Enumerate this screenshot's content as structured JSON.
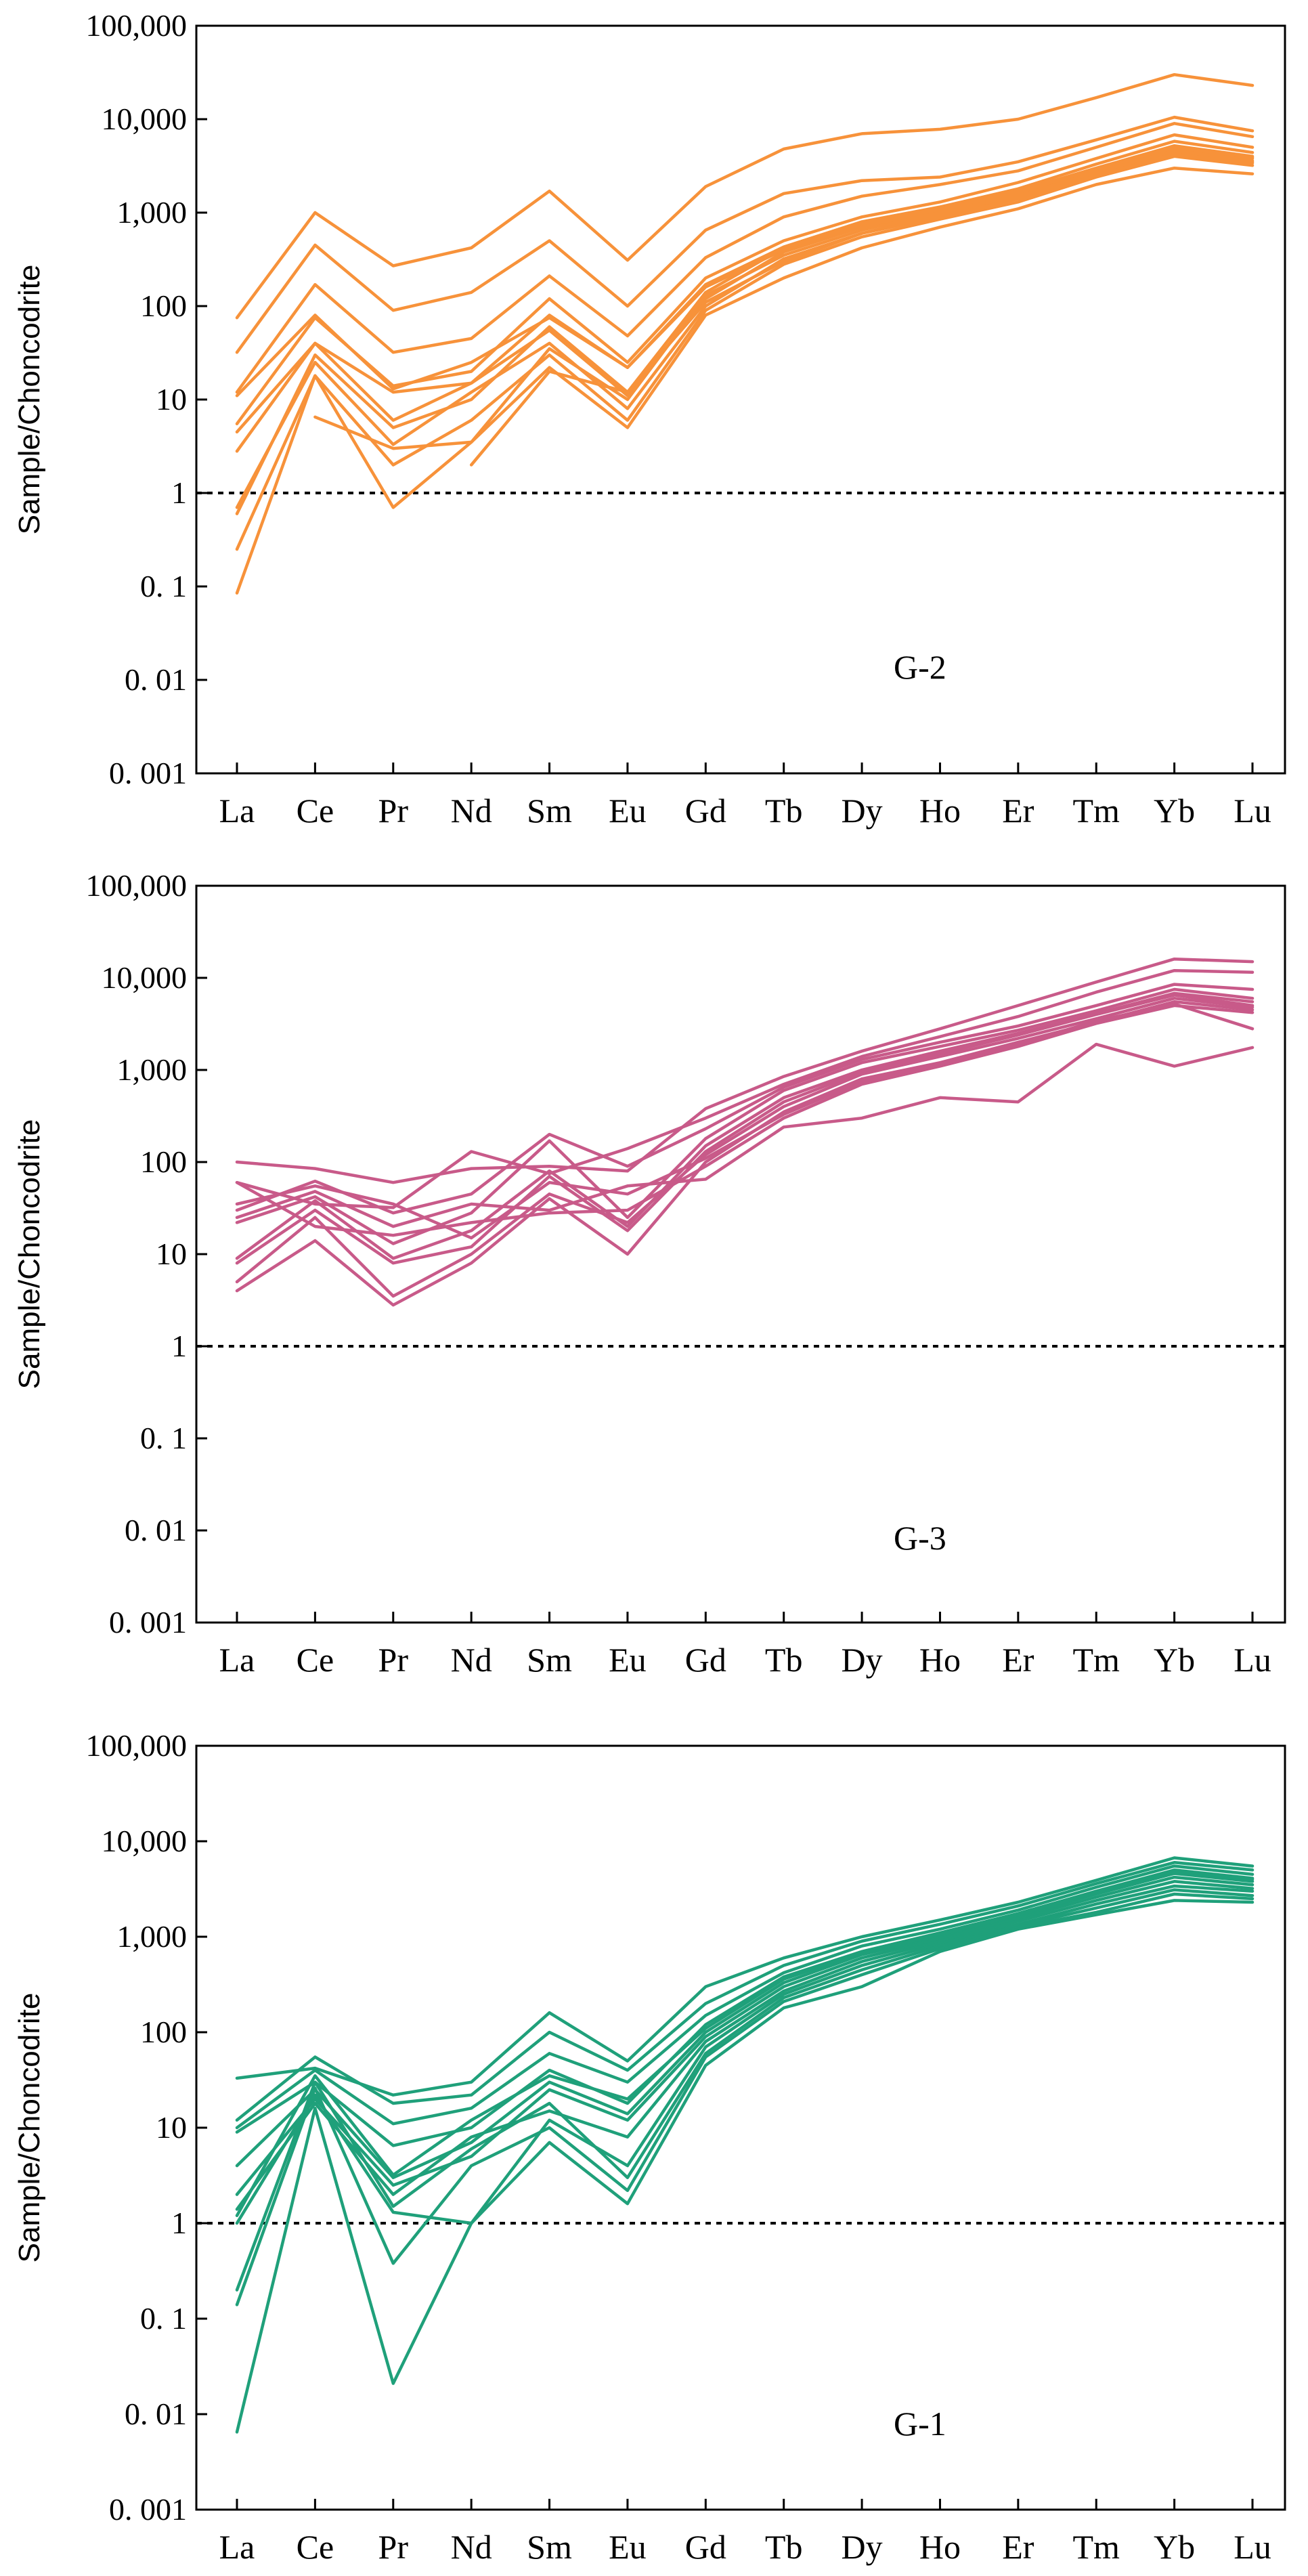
{
  "chart_data": [
    {
      "type": "line",
      "yscale": "log",
      "ylabel": "Sample/Choncodrite",
      "panel_label": "G-2",
      "color": "#f7923a",
      "ylim": [
        0.001,
        100000
      ],
      "yticks": [
        100000,
        10000,
        1000,
        100,
        10,
        1,
        0.1,
        0.01,
        0.001
      ],
      "ytick_labels": [
        "100,000",
        "10,000",
        "1,000",
        "100",
        "10",
        "1",
        "0. 1",
        "0. 01",
        "0. 001"
      ],
      "reference_line": 1,
      "categories": [
        "La",
        "Ce",
        "Pr",
        "Nd",
        "Sm",
        "Eu",
        "Gd",
        "Tb",
        "Dy",
        "Ho",
        "Er",
        "Tm",
        "Yb",
        "Lu"
      ],
      "series": [
        {
          "name": "s1",
          "values": [
            75,
            1000,
            270,
            420,
            1700,
            310,
            1900,
            4800,
            7000,
            7800,
            10000,
            17000,
            30000,
            23000
          ]
        },
        {
          "name": "s2",
          "values": [
            32,
            450,
            90,
            140,
            500,
            100,
            650,
            1600,
            2200,
            2400,
            3500,
            6000,
            10500,
            7500
          ]
        },
        {
          "name": "s3",
          "values": [
            12,
            170,
            32,
            45,
            210,
            48,
            330,
            900,
            1500,
            2000,
            2800,
            5000,
            9000,
            6500
          ]
        },
        {
          "name": "s4",
          "values": [
            5.5,
            75,
            14,
            20,
            120,
            25,
            200,
            500,
            900,
            1300,
            2100,
            3800,
            6800,
            5000
          ]
        },
        {
          "name": "s5",
          "values": [
            4.5,
            40,
            12,
            15,
            80,
            22,
            170,
            430,
            800,
            1150,
            1800,
            3300,
            5800,
            4400
          ]
        },
        {
          "name": "s6",
          "values": [
            11,
            80,
            13,
            25,
            75,
            22,
            160,
            400,
            750,
            1100,
            1700,
            3000,
            5200,
            4000
          ]
        },
        {
          "name": "s7",
          "values": [
            2.8,
            40,
            6,
            15,
            55,
            11,
            120,
            380,
            700,
            1050,
            1600,
            2800,
            4800,
            3800
          ]
        },
        {
          "name": "s8",
          "values": [
            0.7,
            25,
            3.3,
            12,
            40,
            8,
            100,
            320,
            600,
            950,
            1450,
            2600,
            4500,
            3500
          ]
        },
        {
          "name": "s9",
          "values": [
            0.25,
            18,
            2,
            6,
            30,
            6,
            90,
            280,
            550,
            850,
            1300,
            2400,
            4000,
            3200
          ]
        },
        {
          "name": "s10",
          "values": [
            0.085,
            18,
            0.7,
            3.5,
            22,
            5,
            80,
            200,
            420,
            700,
            1100,
            2000,
            3000,
            2600
          ]
        },
        {
          "name": "s11",
          "values": [
            null,
            6.5,
            3,
            3.5,
            35,
            10,
            130,
            350,
            650,
            1000,
            1500,
            2700,
            4600,
            3600
          ]
        },
        {
          "name": "s12",
          "values": [
            null,
            null,
            null,
            2,
            20,
            12,
            110,
            300,
            600,
            900,
            1400,
            2500,
            4200,
            3400
          ]
        },
        {
          "name": "s13",
          "values": [
            0.6,
            30,
            5,
            10,
            60,
            12,
            140,
            420,
            700,
            1100,
            1650,
            2900,
            5000,
            3900
          ]
        }
      ]
    },
    {
      "type": "line",
      "yscale": "log",
      "ylabel": "Sample/Choncodrite",
      "panel_label": "G-3",
      "color": "#c85a89",
      "ylim": [
        0.001,
        100000
      ],
      "yticks": [
        100000,
        10000,
        1000,
        100,
        10,
        1,
        0.1,
        0.01,
        0.001
      ],
      "ytick_labels": [
        "100,000",
        "10,000",
        "1,000",
        "100",
        "10",
        "1",
        "0. 1",
        "0. 01",
        "0. 001"
      ],
      "reference_line": 1,
      "categories": [
        "La",
        "Ce",
        "Pr",
        "Nd",
        "Sm",
        "Eu",
        "Gd",
        "Tb",
        "Dy",
        "Ho",
        "Er",
        "Tm",
        "Yb",
        "Lu"
      ],
      "series": [
        {
          "name": "s1",
          "values": [
            100,
            85,
            60,
            85,
            90,
            80,
            380,
            850,
            1600,
            2800,
            5000,
            9000,
            16000,
            15000
          ]
        },
        {
          "name": "s2",
          "values": [
            60,
            35,
            32,
            130,
            75,
            140,
            300,
            700,
            1400,
            2300,
            3800,
            7000,
            12000,
            11500
          ]
        },
        {
          "name": "s3",
          "values": [
            30,
            62,
            28,
            45,
            200,
            90,
            230,
            650,
            1300,
            2000,
            3000,
            5000,
            8500,
            7500
          ]
        },
        {
          "name": "s4",
          "values": [
            22,
            42,
            13,
            28,
            170,
            25,
            180,
            600,
            1200,
            1800,
            2700,
            4400,
            7500,
            6000
          ]
        },
        {
          "name": "s5",
          "values": [
            9,
            38,
            9,
            18,
            80,
            20,
            150,
            500,
            1000,
            1600,
            2500,
            4100,
            6800,
            5500
          ]
        },
        {
          "name": "s6",
          "values": [
            8,
            30,
            8,
            12,
            70,
            18,
            130,
            450,
            950,
            1500,
            2400,
            4000,
            6500,
            5000
          ]
        },
        {
          "name": "s7",
          "values": [
            5,
            25,
            3.5,
            10,
            45,
            22,
            120,
            400,
            900,
            1400,
            2200,
            3600,
            6000,
            4800
          ]
        },
        {
          "name": "s8",
          "values": [
            4,
            14,
            2.8,
            8,
            40,
            10,
            100,
            350,
            800,
            1200,
            2000,
            3300,
            5500,
            4500
          ]
        },
        {
          "name": "s9",
          "values": [
            25,
            48,
            20,
            35,
            30,
            55,
            65,
            240,
            300,
            500,
            450,
            1900,
            1100,
            1750
          ]
        },
        {
          "name": "s10",
          "values": [
            60,
            20,
            16,
            22,
            28,
            30,
            90,
            300,
            700,
            1100,
            1800,
            3200,
            5000,
            4200
          ]
        },
        {
          "name": "s11",
          "values": [
            35,
            55,
            35,
            15,
            60,
            45,
            110,
            330,
            750,
            1150,
            1900,
            3400,
            5200,
            2800
          ]
        }
      ]
    },
    {
      "type": "line",
      "yscale": "log",
      "ylabel": "Sample/Choncodrite",
      "panel_label": "G-1",
      "color": "#1fa07a",
      "ylim": [
        0.001,
        100000
      ],
      "yticks": [
        100000,
        10000,
        1000,
        100,
        10,
        1,
        0.1,
        0.01,
        0.001
      ],
      "ytick_labels": [
        "100,000",
        "10,000",
        "1,000",
        "100",
        "10",
        "1",
        "0. 1",
        "0. 01",
        "0. 001"
      ],
      "reference_line": 1,
      "categories": [
        "La",
        "Ce",
        "Pr",
        "Nd",
        "Sm",
        "Eu",
        "Gd",
        "Tb",
        "Dy",
        "Ho",
        "Er",
        "Tm",
        "Yb",
        "Lu"
      ],
      "series": [
        {
          "name": "s1",
          "values": [
            33,
            42,
            22,
            30,
            160,
            50,
            300,
            600,
            1000,
            1500,
            2300,
            3900,
            6700,
            5500
          ]
        },
        {
          "name": "s2",
          "values": [
            12,
            55,
            18,
            22,
            100,
            40,
            200,
            500,
            900,
            1350,
            2100,
            3600,
            6000,
            5000
          ]
        },
        {
          "name": "s3",
          "values": [
            10,
            40,
            11,
            16,
            60,
            30,
            150,
            420,
            800,
            1200,
            1900,
            3300,
            5500,
            4500
          ]
        },
        {
          "name": "s4",
          "values": [
            9,
            30,
            6.5,
            10,
            40,
            18,
            120,
            380,
            700,
            1100,
            1750,
            3000,
            5000,
            4100
          ]
        },
        {
          "name": "s5",
          "values": [
            4,
            25,
            3,
            7,
            30,
            14,
            100,
            330,
            650,
            1000,
            1650,
            2800,
            4600,
            3800
          ]
        },
        {
          "name": "s6",
          "values": [
            2,
            20,
            2.5,
            5,
            25,
            12,
            90,
            300,
            600,
            950,
            1550,
            2600,
            4200,
            3500
          ]
        },
        {
          "name": "s7",
          "values": [
            1.4,
            18,
            2,
            8,
            15,
            8,
            80,
            270,
            550,
            900,
            1450,
            2400,
            3800,
            3200
          ]
        },
        {
          "name": "s8",
          "values": [
            1,
            22,
            1.3,
            1,
            12,
            4,
            70,
            250,
            500,
            850,
            1350,
            2200,
            3400,
            3000
          ]
        },
        {
          "name": "s9",
          "values": [
            0.2,
            30,
            1.5,
            6,
            18,
            3,
            60,
            230,
            450,
            800,
            1300,
            2000,
            3100,
            2700
          ]
        },
        {
          "name": "s10",
          "values": [
            0.14,
            26,
            0.38,
            4,
            10,
            2.2,
            55,
            210,
            400,
            750,
            1250,
            1800,
            2800,
            2500
          ]
        },
        {
          "name": "s11",
          "values": [
            0.0065,
            16,
            0.021,
            1,
            7,
            1.6,
            45,
            180,
            300,
            700,
            1200,
            1700,
            2400,
            2300
          ]
        },
        {
          "name": "s12",
          "values": [
            1.2,
            35,
            3.2,
            12,
            35,
            20,
            110,
            360,
            680,
            1050,
            1700,
            2900,
            4800,
            4000
          ]
        }
      ]
    }
  ]
}
